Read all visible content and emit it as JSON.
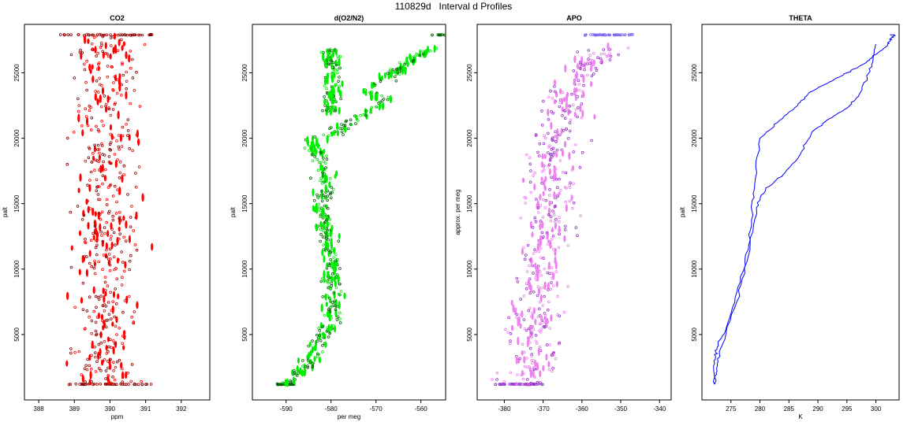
{
  "figure": {
    "title": "110829d   Interval d Profiles"
  },
  "chart_data": [
    {
      "type": "scatter",
      "title": "CO2",
      "xlabel": "ppm",
      "ylabel": "palt",
      "xlim": [
        387.6,
        392.8
      ],
      "ylim": [
        0,
        28700
      ],
      "xticks": [
        388,
        389,
        390,
        391,
        392
      ],
      "yticks": [
        5000,
        10000,
        15000,
        20000,
        25000
      ],
      "colors": {
        "main": "#ff0000",
        "outline": "#8b0000"
      },
      "series": [
        {
          "name": "",
          "x": [
            389.9,
            389.8,
            390.1,
            389.6,
            390.4,
            389.7,
            390.2,
            389.9,
            390.0,
            389.8,
            390.1,
            389.8,
            390.0,
            390.4,
            389.6,
            390.1,
            389.9,
            389.7,
            390.2,
            390.0,
            389.8,
            390.1,
            389.9
          ],
          "y": [
            27900,
            25500,
            24000,
            22500,
            21000,
            20300,
            19500,
            18200,
            17000,
            16000,
            15000,
            14200,
            13000,
            11800,
            10500,
            9000,
            8000,
            7000,
            5900,
            4500,
            3500,
            2300,
            1300
          ]
        }
      ],
      "envelope": {
        "x_center": 389.9,
        "x_spread": 1.0,
        "y_min": 1200,
        "y_max": 27900
      }
    },
    {
      "type": "scatter",
      "title": "d(O2/N2)",
      "xlabel": "per meg",
      "ylabel": "palt",
      "xlim": [
        -597.5,
        -554.5
      ],
      "ylim": [
        0,
        28700
      ],
      "xticks": [
        -590,
        -580,
        -570,
        -560
      ],
      "yticks": [
        5000,
        10000,
        15000,
        20000,
        25000
      ],
      "colors": {
        "main": "#00ee00",
        "outline": "#006400"
      },
      "series": [
        {
          "name": "",
          "x": [
            -590,
            -589,
            -586,
            -584,
            -582,
            -580,
            -579,
            -580,
            -580,
            -580,
            -582,
            -582,
            -581,
            -582,
            -584,
            -585,
            -581,
            -578,
            -575,
            -572,
            -568,
            -572,
            -569,
            -566,
            -562,
            -557
          ],
          "y": [
            1200,
            1700,
            2400,
            3500,
            4700,
            6000,
            7500,
            9000,
            10500,
            12000,
            13500,
            15000,
            16500,
            18000,
            19200,
            19800,
            20200,
            20700,
            21300,
            22000,
            22900,
            23600,
            24300,
            25000,
            26000,
            26900
          ]
        },
        {
          "name": "",
          "x": [
            -580,
            -578,
            -576,
            -574,
            -572,
            -570,
            -568
          ],
          "y": [
            26800,
            25500,
            24200,
            23300,
            22800,
            22400,
            22000
          ]
        }
      ],
      "envelope": {
        "x_spread": 2.2
      }
    },
    {
      "type": "scatter",
      "title": "APO",
      "xlabel": "",
      "ylabel": "approx. per meg",
      "xlim": [
        -387,
        -337
      ],
      "ylim": [
        0,
        28700
      ],
      "xticks": [
        -380,
        -370,
        -360,
        -350,
        -340
      ],
      "yticks": [
        5000,
        10000,
        15000,
        20000,
        25000
      ],
      "colors": {
        "main": "#ee82ee",
        "outline": "#9932cc",
        "top": "#7b68ee"
      },
      "series": [
        {
          "name": "",
          "x": [
            -376,
            -373,
            -372,
            -371,
            -370,
            -368,
            -369,
            -367,
            -366,
            -364,
            -365,
            -362,
            -360,
            -357,
            -353
          ],
          "y": [
            1200,
            3000,
            5500,
            8000,
            10500,
            13000,
            15500,
            18000,
            20000,
            21500,
            22800,
            24000,
            25000,
            26000,
            27000
          ]
        }
      ],
      "envelope": {
        "x_spread": 7
      }
    },
    {
      "type": "line",
      "title": "THETA",
      "xlabel": "K",
      "ylabel": "palt",
      "xlim": [
        270.0,
        304.0
      ],
      "ylim": [
        0,
        28700
      ],
      "xticks": [
        275,
        280,
        285,
        290,
        295,
        300
      ],
      "yticks": [
        5000,
        10000,
        15000,
        20000,
        25000
      ],
      "colors": {
        "main": "#0000ff"
      },
      "series": [
        {
          "name": "",
          "x": [
            272.2,
            272.0,
            272.3,
            272.6,
            274.0,
            276.0,
            278.0,
            278.6,
            279.1,
            280.0,
            283.0,
            286.5,
            288.5,
            292.0,
            295.0,
            298.0,
            300.0,
            302.0,
            302.5,
            303.0,
            303.2,
            303.0,
            302.4
          ],
          "y": [
            1200,
            2600,
            3400,
            4000,
            5200,
            8200,
            11500,
            14500,
            16500,
            20000,
            21200,
            22500,
            23500,
            24300,
            25000,
            25700,
            26400,
            27100,
            27500,
            27800,
            27900,
            27900,
            27900
          ]
        },
        {
          "name": "",
          "x": [
            272.2,
            272.6,
            273.0,
            276.0,
            278.0,
            279.4,
            281.0,
            284.0,
            287.0,
            289.0,
            292.0,
            295.0,
            297.0,
            298.5,
            299.5,
            300.0
          ],
          "y": [
            1200,
            2200,
            3700,
            7500,
            11000,
            14700,
            16200,
            17200,
            18800,
            20500,
            21500,
            22300,
            23200,
            24600,
            26000,
            27200
          ]
        }
      ]
    }
  ]
}
